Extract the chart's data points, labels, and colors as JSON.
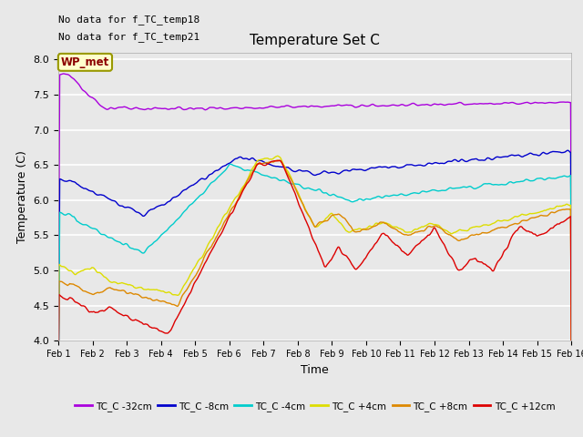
{
  "title": "Temperature Set C",
  "xlabel": "Time",
  "ylabel": "Temperature (C)",
  "ylim": [
    4.0,
    8.1
  ],
  "yticks": [
    4.0,
    4.5,
    5.0,
    5.5,
    6.0,
    6.5,
    7.0,
    7.5,
    8.0
  ],
  "no_data_text": [
    "No data for f_TC_temp18",
    "No data for f_TC_temp21"
  ],
  "wp_met_label": "WP_met",
  "legend_entries": [
    "TC_C -32cm",
    "TC_C -8cm",
    "TC_C -4cm",
    "TC_C +4cm",
    "TC_C +8cm",
    "TC_C +12cm"
  ],
  "line_colors": [
    "#aa00dd",
    "#0000cc",
    "#00cccc",
    "#dddd00",
    "#dd8800",
    "#dd0000"
  ],
  "bg_color": "#e8e8e8",
  "n_points": 720,
  "x_start": 1,
  "x_end": 16,
  "xtick_positions": [
    1,
    2,
    3,
    4,
    5,
    6,
    7,
    8,
    9,
    10,
    11,
    12,
    13,
    14,
    15,
    16
  ],
  "xtick_labels": [
    "Feb 1",
    "Feb 2",
    "Feb 3",
    "Feb 4",
    "Feb 5",
    "Feb 6",
    "Feb 7",
    "Feb 8",
    "Feb 9",
    "Feb 10",
    "Feb 11",
    "Feb 12",
    "Feb 13",
    "Feb 14",
    "Feb 15",
    "Feb 16"
  ],
  "figsize": [
    6.4,
    4.8
  ],
  "dpi": 100
}
